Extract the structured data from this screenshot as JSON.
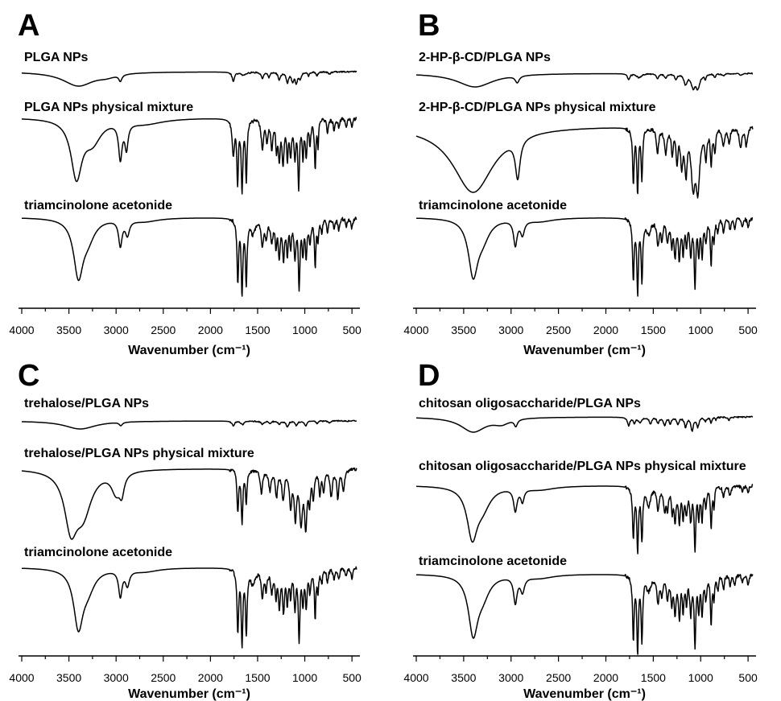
{
  "chart_data": [
    {
      "type": "line",
      "panel": "A",
      "xlabel": "Wavenumber (cm⁻¹)",
      "xlim": [
        4000,
        450
      ],
      "x_reversed": true,
      "x_ticks": [
        "4000",
        "3500",
        "3000",
        "2500",
        "2000",
        "1500",
        "1000",
        "500"
      ],
      "y_axis_shown": false,
      "series": [
        {
          "name": "PLGA NPs",
          "profile": "plga",
          "amplitude": 0.45
        },
        {
          "name": "PLGA NPs physical mixture",
          "profile": "mix_plga",
          "amplitude": 1.0
        },
        {
          "name": "triamcinolone acetonide",
          "profile": "ta",
          "amplitude": 1.0
        }
      ]
    },
    {
      "type": "line",
      "panel": "B",
      "xlabel": "Wavenumber (cm⁻¹)",
      "xlim": [
        4000,
        450
      ],
      "x_reversed": true,
      "x_ticks": [
        "4000",
        "3500",
        "3000",
        "2500",
        "2000",
        "1500",
        "1000",
        "500"
      ],
      "y_axis_shown": false,
      "series": [
        {
          "name": "2-HP-β-CD/PLGA NPs",
          "profile": "cd",
          "amplitude": 0.55
        },
        {
          "name": "2-HP-β-CD/PLGA NPs physical mixture",
          "profile": "mix_cd",
          "amplitude": 1.0
        },
        {
          "name": "triamcinolone acetonide",
          "profile": "ta",
          "amplitude": 1.0
        }
      ]
    },
    {
      "type": "line",
      "panel": "C",
      "xlabel": "Wavenumber (cm⁻¹)",
      "xlim": [
        4000,
        450
      ],
      "x_reversed": true,
      "x_ticks": [
        "4000",
        "3500",
        "3000",
        "2500",
        "2000",
        "1500",
        "1000",
        "500"
      ],
      "y_axis_shown": false,
      "series": [
        {
          "name": "trehalose/PLGA NPs",
          "profile": "tre",
          "amplitude": 0.25
        },
        {
          "name": "trehalose/PLGA NPs physical mixture",
          "profile": "mix_tre",
          "amplitude": 1.0
        },
        {
          "name": "triamcinolone acetonide",
          "profile": "ta",
          "amplitude": 1.0
        }
      ]
    },
    {
      "type": "line",
      "panel": "D",
      "xlabel": "Wavenumber (cm⁻¹)",
      "xlim": [
        4000,
        450
      ],
      "x_reversed": true,
      "x_ticks": [
        "4000",
        "3500",
        "3000",
        "2500",
        "2000",
        "1500",
        "1000",
        "500"
      ],
      "y_axis_shown": false,
      "series": [
        {
          "name": "chitosan oligosaccharide/PLGA NPs",
          "profile": "cos",
          "amplitude": 0.5
        },
        {
          "name": "chitosan oligosaccharide/PLGA NPs physical mixture",
          "profile": "mix_cos",
          "amplitude": 1.0
        },
        {
          "name": "triamcinolone acetonide",
          "profile": "ta",
          "amplitude": 1.0
        }
      ]
    }
  ]
}
